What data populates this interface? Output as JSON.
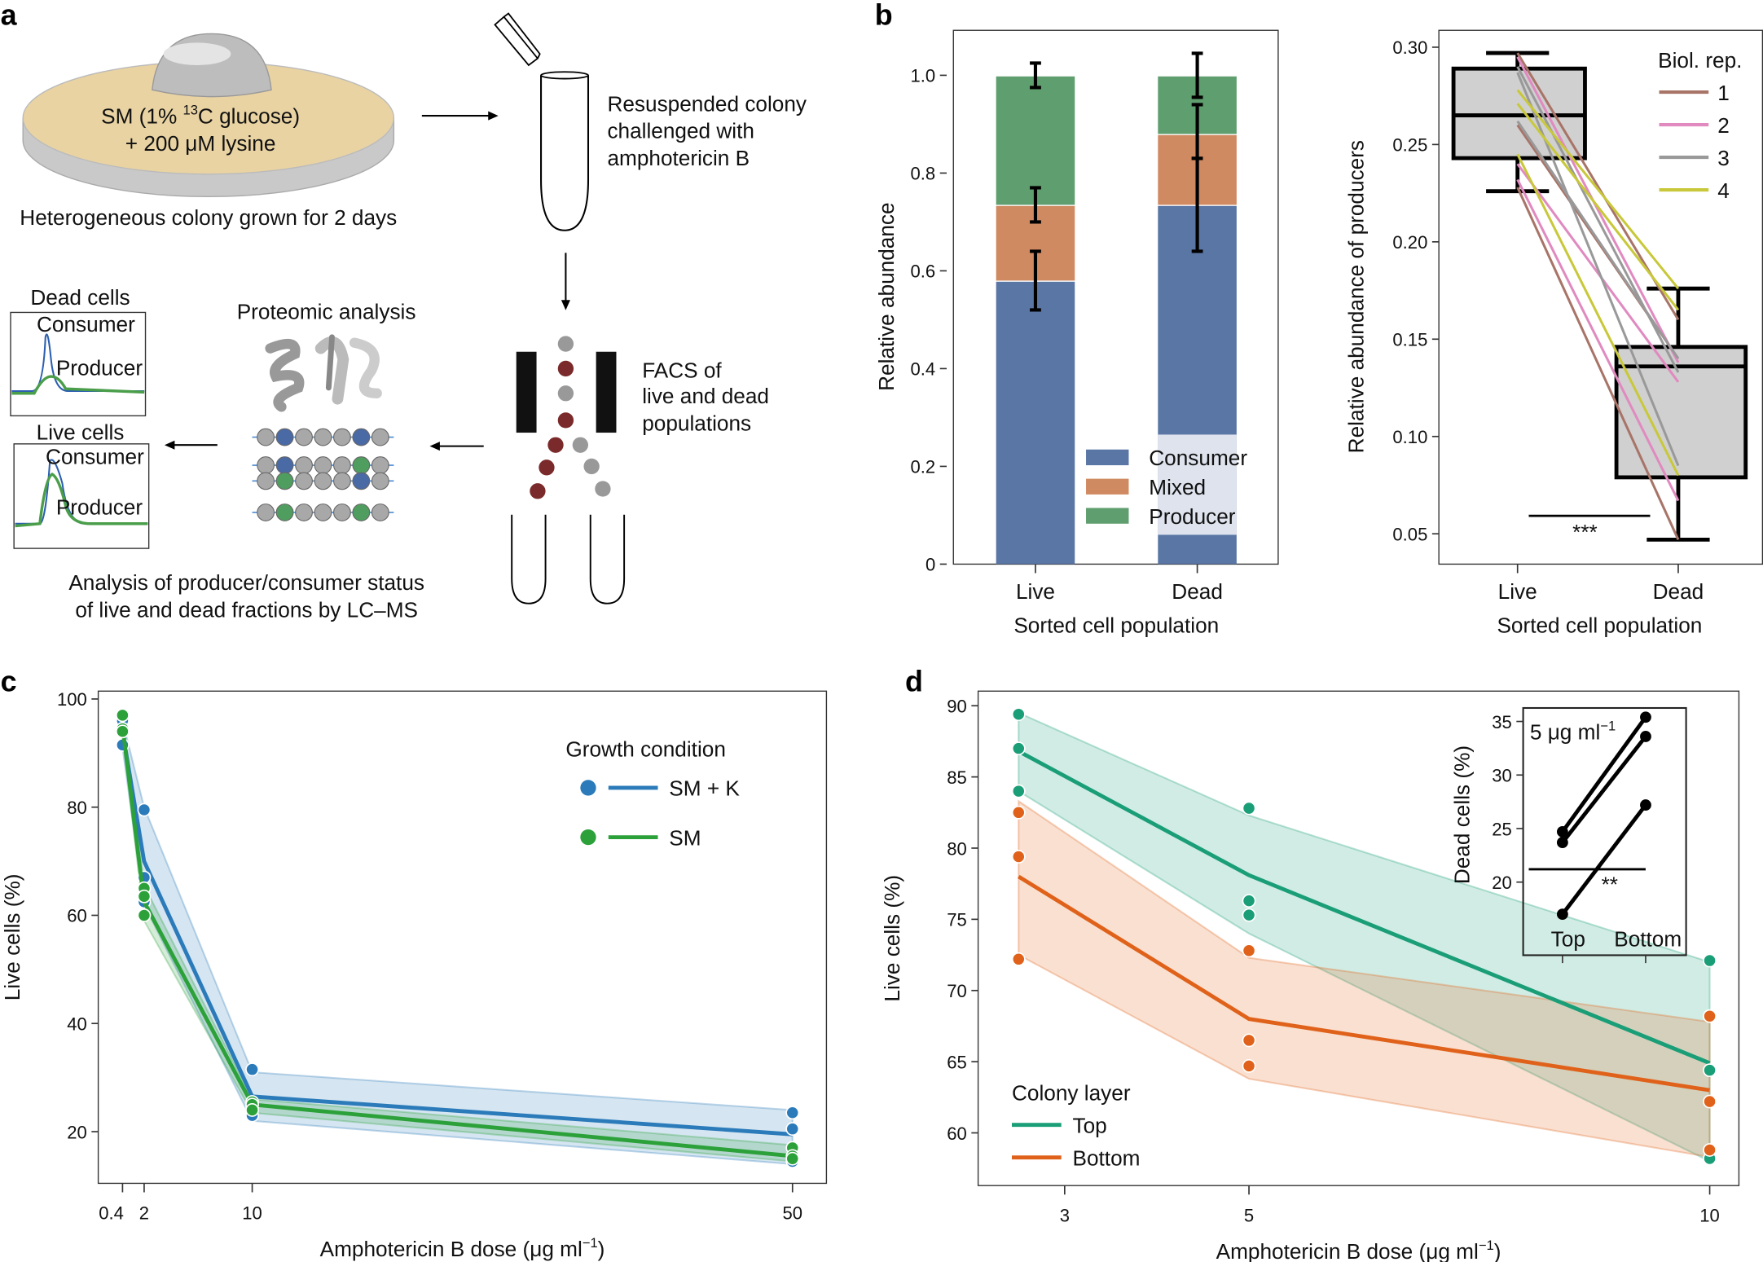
{
  "panel_labels": [
    "a",
    "b",
    "c",
    "d"
  ],
  "schematic": {
    "plate_line1_pre": "SM (1% ",
    "plate_line1_sup": "13",
    "plate_line1_post": "C glucose)",
    "plate_line2": "+ 200 μM lysine",
    "colony_caption": "Heterogeneous colony grown for 2 days",
    "resuspend_text": [
      "Resuspended colony",
      "challenged with",
      "amphotericin B"
    ],
    "facs_text": [
      "FACS of",
      "live and dead",
      "populations"
    ],
    "proteomic_title": "Proteomic analysis",
    "dead_cells_title": "Dead cells",
    "live_cells_title": "Live cells",
    "consumer": "Consumer",
    "producer": "Producer",
    "analysis_caption": [
      "Analysis of producer/consumer status",
      "of live and dead fractions by LC–MS"
    ],
    "colors": {
      "plate": "#e9d3a3",
      "dead_droplet": "#7a2a2a",
      "live_droplet": "#999999",
      "peptide_blue": "#4a6aa5",
      "peptide_green": "#4f9e5f"
    }
  },
  "chart_data": [
    {
      "id": "b-left",
      "type": "bar",
      "stacked": true,
      "categories": [
        "Live",
        "Dead"
      ],
      "xlabel": "Sorted cell population",
      "ylabel": "Relative abundance",
      "ylim": [
        0,
        1.08
      ],
      "yticks": [
        {
          "v": 0,
          "label": "0"
        },
        {
          "v": 0.2,
          "label": "0.2"
        },
        {
          "v": 0.4,
          "label": "0.4"
        },
        {
          "v": 0.6,
          "label": "0.6"
        },
        {
          "v": 0.8,
          "label": "0.8"
        },
        {
          "v": 1.0,
          "label": "1.0"
        }
      ],
      "series": [
        {
          "name": "Consumer",
          "color": "#5a76a5",
          "values": [
            0.58,
            0.735
          ],
          "error_cumulative": [
            [
              0.52,
              0.64
            ],
            [
              0.64,
              0.83
            ]
          ]
        },
        {
          "name": "Mixed",
          "color": "#d08a62",
          "values": [
            0.155,
            0.145
          ],
          "error_cumulative": [
            [
              0.7,
              0.77
            ],
            [
              0.83,
              0.94
            ]
          ]
        },
        {
          "name": "Producer",
          "color": "#5f9e6e",
          "values": [
            0.265,
            0.12
          ],
          "error_cumulative": [
            [
              0.975,
              1.025
            ],
            [
              0.955,
              1.045
            ]
          ]
        }
      ],
      "legend": "bottom-right",
      "grid": false
    },
    {
      "id": "b-right",
      "type": "box",
      "categories": [
        "Live",
        "Dead"
      ],
      "xlabel": "Sorted cell population",
      "ylabel": "Relative abundance of producers",
      "ylim": [
        0.04,
        0.31
      ],
      "yticks": [
        {
          "v": 0.05,
          "label": "0.05"
        },
        {
          "v": 0.1,
          "label": "0.10"
        },
        {
          "v": 0.15,
          "label": "0.15"
        },
        {
          "v": 0.2,
          "label": "0.20"
        },
        {
          "v": 0.25,
          "label": "0.25"
        },
        {
          "v": 0.3,
          "label": "0.30"
        }
      ],
      "boxes": [
        {
          "category": "Live",
          "whisker_low": 0.226,
          "q1": 0.243,
          "median": 0.265,
          "q3": 0.289,
          "whisker_high": 0.297
        },
        {
          "category": "Dead",
          "whisker_low": 0.047,
          "q1": 0.079,
          "median": 0.136,
          "q3": 0.146,
          "whisker_high": 0.176
        }
      ],
      "box_fill": "#d0d0d0",
      "legend_title": "Biol. rep.",
      "legend": "top-right",
      "replicates": [
        {
          "name": "1",
          "color": "#a87468",
          "pairs": [
            [
              0.297,
              0.16
            ],
            [
              0.26,
              0.14
            ],
            [
              0.228,
              0.047
            ]
          ]
        },
        {
          "name": "2",
          "color": "#e08ac0",
          "pairs": [
            [
              0.295,
              0.138
            ],
            [
              0.24,
              0.128
            ],
            [
              0.232,
              0.067
            ]
          ]
        },
        {
          "name": "3",
          "color": "#999999",
          "pairs": [
            [
              0.29,
              0.133
            ],
            [
              0.287,
              0.085
            ],
            [
              0.262,
              0.14
            ]
          ]
        },
        {
          "name": "4",
          "color": "#c8c83a",
          "pairs": [
            [
              0.278,
              0.176
            ],
            [
              0.271,
              0.165
            ],
            [
              0.245,
              0.08
            ]
          ]
        }
      ],
      "significance": "***"
    },
    {
      "id": "c",
      "type": "line",
      "xlabel_pre": "Amphotericin B dose (μg ml",
      "xlabel_sup": "−1",
      "xlabel_post": ")",
      "ylabel": "Live cells (%)",
      "xticks": [
        {
          "v": 0.4,
          "label": "0.4"
        },
        {
          "v": 2,
          "label": "2"
        },
        {
          "v": 10,
          "label": "10"
        },
        {
          "v": 50,
          "label": "50"
        }
      ],
      "yticks": [
        {
          "v": 20,
          "label": "20"
        },
        {
          "v": 40,
          "label": "40"
        },
        {
          "v": 60,
          "label": "60"
        },
        {
          "v": 80,
          "label": "80"
        },
        {
          "v": 100,
          "label": "100"
        }
      ],
      "x": [
        0.4,
        2,
        10,
        50
      ],
      "legend_title": "Growth condition",
      "legend": "top-right",
      "series": [
        {
          "name": "SM + K",
          "color": "#2b7bba",
          "mean": [
            94,
            70,
            26.5,
            19.5
          ],
          "band_low": [
            91,
            62,
            22,
            14
          ],
          "band_high": [
            96,
            80,
            31,
            24
          ],
          "points": [
            [
              91.5,
              94,
              96
            ],
            [
              79.5,
              67,
              62.5
            ],
            [
              31.5,
              24.5,
              23
            ],
            [
              23.5,
              20.5,
              14.5
            ]
          ]
        },
        {
          "name": "SM",
          "color": "#2ca13a",
          "mean": [
            95,
            62.5,
            25,
            15.5
          ],
          "band_low": [
            93.5,
            59,
            23.5,
            14.5
          ],
          "band_high": [
            97,
            65.5,
            26,
            17.5
          ],
          "points": [
            [
              97,
              94.5,
              94
            ],
            [
              65,
              63.5,
              60
            ],
            [
              25.5,
              25,
              24
            ],
            [
              17,
              15.5,
              15
            ]
          ]
        }
      ]
    },
    {
      "id": "d",
      "type": "line",
      "xlabel_pre": "Amphotericin B dose (μg ml",
      "xlabel_sup": "−1",
      "xlabel_post": ")",
      "ylabel": "Live cells (%)",
      "xticks": [
        {
          "v": 3,
          "label": "3"
        },
        {
          "v": 5,
          "label": "5"
        },
        {
          "v": 10,
          "label": "10"
        }
      ],
      "yticks": [
        {
          "v": 60,
          "label": "60"
        },
        {
          "v": 65,
          "label": "65"
        },
        {
          "v": 70,
          "label": "70"
        },
        {
          "v": 75,
          "label": "75"
        },
        {
          "v": 80,
          "label": "80"
        },
        {
          "v": 85,
          "label": "85"
        },
        {
          "v": 90,
          "label": "90"
        }
      ],
      "x": [
        2.5,
        5,
        10
      ],
      "legend_title": "Colony layer",
      "legend": "bottom-left",
      "series": [
        {
          "name": "Top",
          "color": "#1a9e77",
          "mean": [
            86.8,
            78.1,
            64.9
          ],
          "band_low": [
            84,
            74,
            58
          ],
          "band_high": [
            89.5,
            82.3,
            72
          ],
          "points": [
            [
              89.4,
              87,
              84
            ],
            [
              82.8,
              76.3,
              75.3
            ],
            [
              72.1,
              64.4,
              58.2
            ]
          ]
        },
        {
          "name": "Bottom",
          "color": "#e0621a",
          "mean": [
            78,
            68,
            63
          ],
          "band_low": [
            72.5,
            63.8,
            58.3
          ],
          "band_high": [
            83.3,
            72.3,
            67.8
          ],
          "points": [
            [
              82.5,
              79.4,
              72.2
            ],
            [
              72.8,
              66.5,
              64.7
            ],
            [
              68.2,
              62.2,
              58.8
            ]
          ]
        }
      ],
      "inset": {
        "type": "paired-dot",
        "title_pre": "5 μg ml",
        "title_sup": "−1",
        "ylabel": "Dead cells (%)",
        "categories": [
          "Top",
          "Bottom"
        ],
        "yticks": [
          {
            "v": 20,
            "label": "20"
          },
          {
            "v": 25,
            "label": "25"
          },
          {
            "v": 30,
            "label": "30"
          },
          {
            "v": 35,
            "label": "35"
          }
        ],
        "pairs": [
          [
            24.7,
            35.4
          ],
          [
            23.7,
            33.6
          ],
          [
            17.0,
            27.2
          ]
        ],
        "significance": "**"
      }
    }
  ]
}
